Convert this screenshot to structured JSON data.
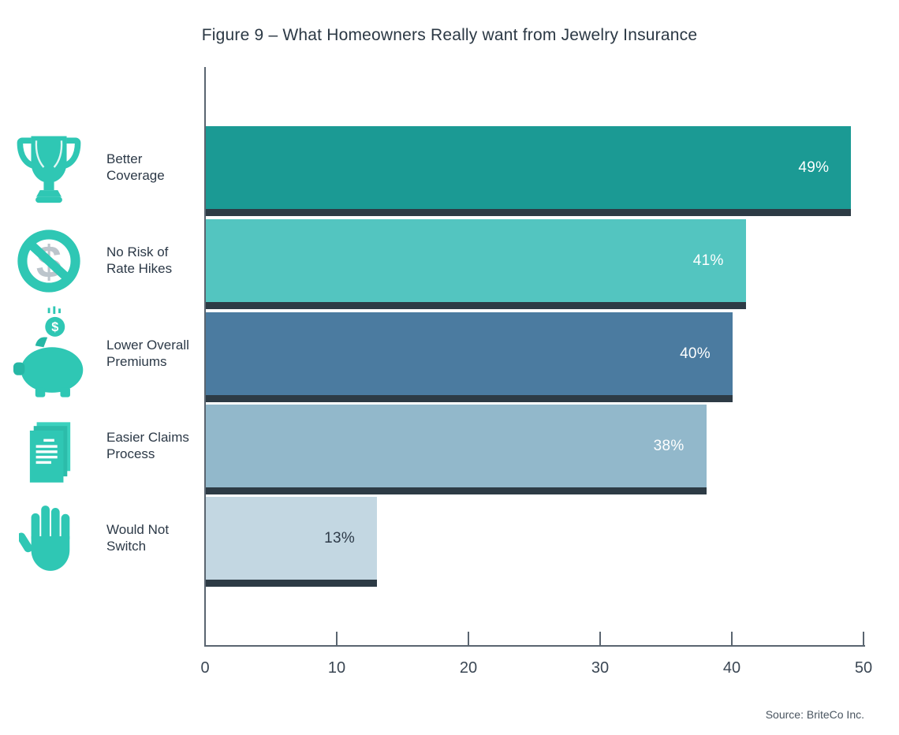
{
  "page": {
    "title": "Figure 9 – What Homeowners Really want from Jewelry Insurance",
    "source": "Source: BriteCo Inc."
  },
  "chart_data": {
    "type": "bar",
    "orientation": "horizontal",
    "title": "Figure 9 – What Homeowners Really want from Jewelry Insurance",
    "categories": [
      "Better Coverage",
      "No Risk of Rate Hikes",
      "Lower Overall Premiums",
      "Easier Claims Process",
      "Would Not Switch"
    ],
    "category_lines": [
      [
        "Better",
        "Coverage"
      ],
      [
        "No Risk of",
        "Rate Hikes"
      ],
      [
        "Lower Overall",
        "Premiums"
      ],
      [
        "Easier Claims",
        "Process"
      ],
      [
        "Would Not",
        "Switch"
      ]
    ],
    "values": [
      49,
      41,
      40,
      38,
      13
    ],
    "value_labels": [
      "49%",
      "41%",
      "40%",
      "38%",
      "13%"
    ],
    "icons": [
      "trophy-icon",
      "no-dollar-icon",
      "piggy-bank-icon",
      "documents-icon",
      "hand-icon"
    ],
    "bar_colors": [
      "#1b9a94",
      "#53c5c0",
      "#4b7ba0",
      "#92b8cb",
      "#c3d7e2"
    ],
    "value_label_colors": [
      "#ffffff",
      "#ffffff",
      "#ffffff",
      "#ffffff",
      "#2d3a48"
    ],
    "bar_shadow_color": "#2d3b45",
    "xlabel": "",
    "ylabel": "",
    "x_ticks": [
      0,
      10,
      20,
      30,
      40,
      50
    ],
    "xlim": [
      0,
      50
    ],
    "grid": false,
    "legend": false,
    "source": "Source: BriteCo Inc."
  },
  "colors": {
    "accent_teal": "#2fc7b4",
    "text_dark": "#2b3844",
    "axis": "#5a6570"
  }
}
